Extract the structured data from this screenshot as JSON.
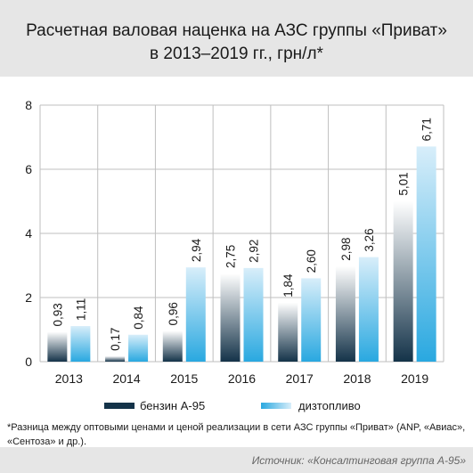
{
  "title_line1": "Расчетная валовая наценка на АЗС группы «Приват»",
  "title_line2": "в 2013–2019 гг., грн/л*",
  "footnote": "*Разница между оптовыми ценами и ценой реализации в сети АЗС группы «Приват» (ANP, «Авиас», «Сентоза» и др.).",
  "source": "Источник: «Консалтинговая группа А-95»",
  "colors": {
    "petrol_dark": "#143349",
    "petrol_light": "#ffffff",
    "diesel_dark": "#29a8e0",
    "diesel_light": "#d8eefa"
  },
  "chart_data": {
    "type": "bar",
    "categories": [
      "2013",
      "2014",
      "2015",
      "2016",
      "2017",
      "2018",
      "2019"
    ],
    "series": [
      {
        "name": "бензин А-95",
        "values": [
          0.93,
          0.17,
          0.96,
          2.75,
          1.84,
          2.98,
          5.01
        ],
        "labels": [
          "0,93",
          "0,17",
          "0,96",
          "2,75",
          "1,84",
          "2,98",
          "5,01"
        ]
      },
      {
        "name": "дизтопливо",
        "values": [
          1.11,
          0.84,
          2.94,
          2.92,
          2.6,
          3.26,
          6.71
        ],
        "labels": [
          "1,11",
          "0,84",
          "2,94",
          "2,92",
          "2,60",
          "3,26",
          "6,71"
        ]
      }
    ],
    "yticks": [
      "0",
      "2",
      "4",
      "6",
      "8"
    ],
    "ylim": [
      0,
      8
    ],
    "grid": true,
    "legend": "bottom"
  }
}
